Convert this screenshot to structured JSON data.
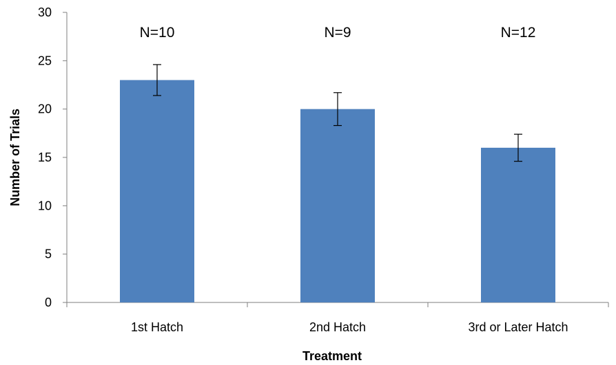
{
  "chart_data": {
    "type": "bar",
    "categories": [
      "1st Hatch",
      "2nd Hatch",
      "3rd or Later Hatch"
    ],
    "series": [
      {
        "values": [
          23,
          20,
          16
        ],
        "error": [
          1.6,
          1.7,
          1.4
        ],
        "color": "#4f81bd"
      }
    ],
    "annotations": [
      "N=10",
      "N=9",
      "N=12"
    ],
    "xlabel": "Treatment",
    "ylabel": "Number of Trials",
    "ylim": [
      0,
      30
    ],
    "yticks": [
      0,
      5,
      10,
      15,
      20,
      25,
      30
    ],
    "grid": false
  }
}
